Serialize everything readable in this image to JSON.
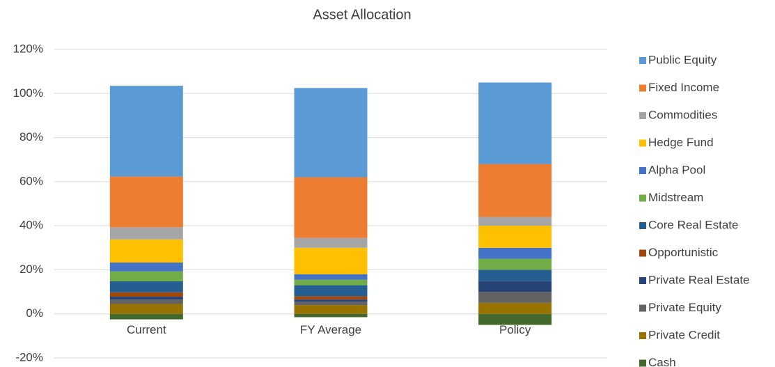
{
  "chart_data": {
    "type": "stacked_bar",
    "title": "Asset Allocation",
    "categories": [
      "Current",
      "FY Average",
      "Policy"
    ],
    "series": [
      {
        "name": "Public Equity",
        "color": "#5b9bd5",
        "values": [
          41.2,
          40.5,
          37
        ]
      },
      {
        "name": "Fixed Income",
        "color": "#ed7d31",
        "values": [
          23,
          27.5,
          24
        ]
      },
      {
        "name": "Commodities",
        "color": "#a5a5a5",
        "values": [
          5.5,
          4.5,
          4
        ]
      },
      {
        "name": "Hedge Fund",
        "color": "#ffc000",
        "values": [
          10.5,
          12,
          10
        ]
      },
      {
        "name": "Alpha Pool",
        "color": "#4472c4",
        "values": [
          4,
          2.5,
          5
        ]
      },
      {
        "name": "Midstream",
        "color": "#70ad47",
        "values": [
          4.5,
          2.5,
          5
        ]
      },
      {
        "name": "Core Real Estate",
        "color": "#255e91",
        "values": [
          5,
          5,
          5
        ]
      },
      {
        "name": "Opportunistic",
        "color": "#9e480e",
        "values": [
          2,
          1.5,
          0
        ]
      },
      {
        "name": "Private Real Estate",
        "color": "#264478",
        "values": [
          1.3,
          1,
          5
        ]
      },
      {
        "name": "Private Equity",
        "color": "#636363",
        "values": [
          2,
          1.5,
          5
        ]
      },
      {
        "name": "Private Credit",
        "color": "#997300",
        "values": [
          4.5,
          4,
          5
        ]
      },
      {
        "name": "Cash",
        "color": "#43682b",
        "values": [
          -2.5,
          -1.5,
          -5
        ]
      }
    ],
    "ylim": [
      -20,
      120
    ],
    "yticks": [
      {
        "value": -20,
        "label": "-20%"
      },
      {
        "value": 0,
        "label": "0%"
      },
      {
        "value": 20,
        "label": "20%"
      },
      {
        "value": 40,
        "label": "40%"
      },
      {
        "value": 60,
        "label": "60%"
      },
      {
        "value": 80,
        "label": "80%"
      },
      {
        "value": 100,
        "label": "100%"
      },
      {
        "value": 120,
        "label": "120%"
      }
    ],
    "grid": true,
    "legend": "right"
  }
}
